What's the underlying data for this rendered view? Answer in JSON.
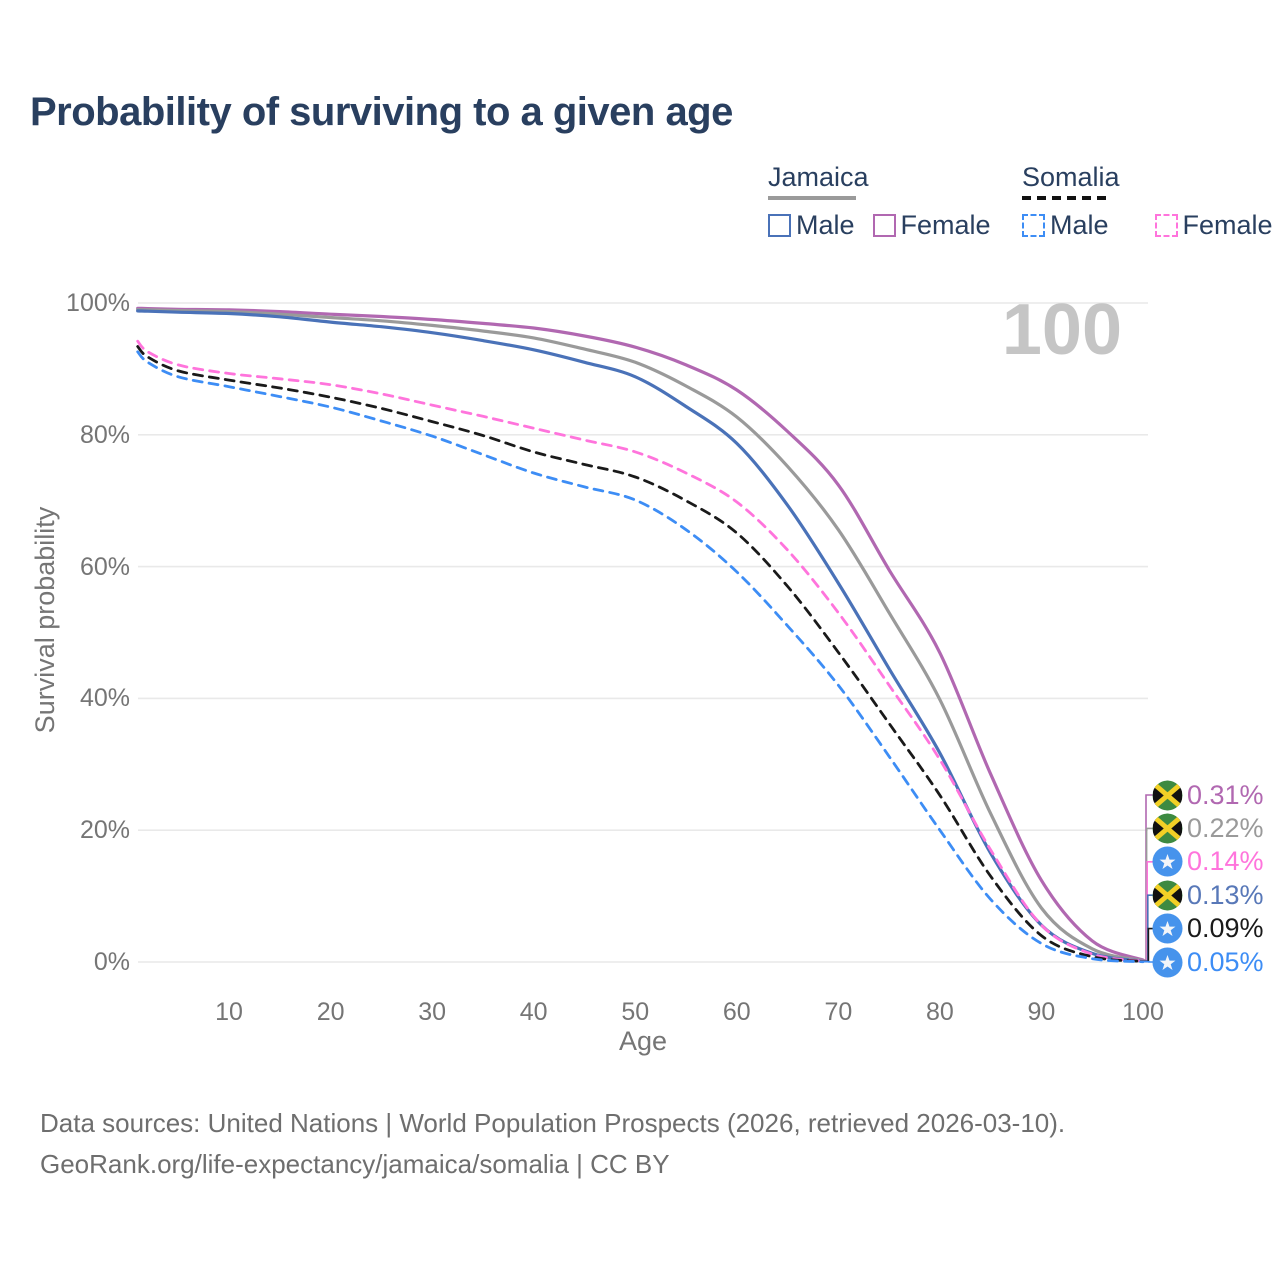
{
  "title": "Probability of surviving to a given age",
  "legend": {
    "jamaica": {
      "name": "Jamaica",
      "underline_style": "solid",
      "underline_color": "#9a9a9a",
      "male_label": "Male",
      "male_color": "#4a72b8",
      "female_label": "Female",
      "female_color": "#b168b1"
    },
    "somalia": {
      "name": "Somalia",
      "underline_style": "dashed",
      "underline_color": "#111111",
      "male_label": "Male",
      "male_color": "#3d8df5",
      "female_label": "Female",
      "female_color": "#ff74dc"
    }
  },
  "chart_data": {
    "type": "line",
    "title": "Probability of surviving to a given age",
    "xlabel": "Age",
    "ylabel": "Survival probability",
    "xlim": [
      1,
      100
    ],
    "ylim": [
      0,
      100
    ],
    "grid": "horizontal",
    "grid_color": "#e9e9e9",
    "x_tick_labels": [
      "10",
      "20",
      "30",
      "40",
      "50",
      "60",
      "70",
      "80",
      "90",
      "100"
    ],
    "x_tick_values": [
      10,
      20,
      30,
      40,
      50,
      60,
      70,
      80,
      90,
      100
    ],
    "y_tick_labels": [
      "0%",
      "20%",
      "40%",
      "60%",
      "80%",
      "100%"
    ],
    "y_tick_values": [
      0,
      20,
      40,
      60,
      80,
      100
    ],
    "age_watermark": "100",
    "x": [
      1,
      2,
      5,
      10,
      15,
      20,
      25,
      30,
      35,
      40,
      45,
      50,
      55,
      60,
      65,
      70,
      75,
      80,
      85,
      90,
      95,
      100
    ],
    "series": [
      {
        "name": "Jamaica Female",
        "flag": "jamaica",
        "color": "#b168b1",
        "dashed": false,
        "end_label": "0.31%",
        "end_label_color": "#b168b1",
        "values": [
          99.2,
          99.15,
          99.05,
          98.95,
          98.7,
          98.3,
          97.95,
          97.5,
          96.9,
          96.2,
          95.0,
          93.3,
          90.6,
          86.8,
          80.5,
          72.4,
          59.5,
          46.9,
          28.5,
          12.4,
          3.2,
          0.31
        ]
      },
      {
        "name": "Jamaica Both sexes",
        "flag": "jamaica",
        "color": "#9a9a9a",
        "dashed": false,
        "end_label": "0.22%",
        "end_label_color": "#9a9a9a",
        "values": [
          99.0,
          98.95,
          98.85,
          98.7,
          98.3,
          97.8,
          97.3,
          96.6,
          95.75,
          94.7,
          93.0,
          91.0,
          87.4,
          82.7,
          75.2,
          65.6,
          53.0,
          39.8,
          22.5,
          8.2,
          2.0,
          0.22
        ]
      },
      {
        "name": "Jamaica Male",
        "flag": "jamaica",
        "color": "#4a72b8",
        "dashed": false,
        "end_label": "0.13%",
        "end_label_color": "#5878b8",
        "values": [
          98.8,
          98.75,
          98.6,
          98.4,
          97.9,
          97.1,
          96.4,
          95.5,
          94.3,
          92.9,
          91.0,
          88.8,
          84.3,
          78.7,
          69.3,
          57.5,
          44.5,
          31.7,
          16.5,
          5.6,
          1.3,
          0.13
        ]
      },
      {
        "name": "Somalia Female",
        "flag": "somalia",
        "color": "#ff74dc",
        "dashed": true,
        "end_label": "0.14%",
        "end_label_color": "#ff74dc",
        "values": [
          94.2,
          92.6,
          90.6,
          89.3,
          88.5,
          87.6,
          86.2,
          84.5,
          82.8,
          81.0,
          79.2,
          77.4,
          74.2,
          69.8,
          62.5,
          53.0,
          42.0,
          30.7,
          17.0,
          5.6,
          1.2,
          0.14
        ]
      },
      {
        "name": "Somalia Both sexes",
        "flag": "somalia",
        "color": "#1a1a1a",
        "dashed": true,
        "end_label": "0.09%",
        "end_label_color": "#1a1a1a",
        "values": [
          93.4,
          91.8,
          89.7,
          88.3,
          87.1,
          85.7,
          84.0,
          82.0,
          79.9,
          77.4,
          75.5,
          73.6,
          70.0,
          65.1,
          57.0,
          47.0,
          36.2,
          25.3,
          13.0,
          4.0,
          0.8,
          0.09
        ]
      },
      {
        "name": "Somalia Male",
        "flag": "somalia",
        "color": "#3d8df5",
        "dashed": true,
        "end_label": "0.05%",
        "end_label_color": "#3d8df5",
        "values": [
          92.6,
          91.0,
          88.8,
          87.3,
          85.8,
          84.2,
          82.1,
          79.8,
          77.0,
          74.2,
          72.1,
          70.1,
          65.6,
          59.2,
          51.0,
          42.0,
          31.2,
          20.0,
          9.5,
          2.8,
          0.5,
          0.05
        ]
      }
    ]
  },
  "icons": {
    "jamaica_flag": {
      "green": "#3d8a41",
      "gold": "#f2d026",
      "black": "#111111"
    },
    "somalia_flag": {
      "blue": "#4693ec",
      "white": "#f2f5f9"
    }
  },
  "footer": {
    "line1": "Data sources: United Nations | World Population Prospects (2026, retrieved 2026-03-10).",
    "line2": "GeoRank.org/life-expectancy/jamaica/somalia | CC BY"
  }
}
